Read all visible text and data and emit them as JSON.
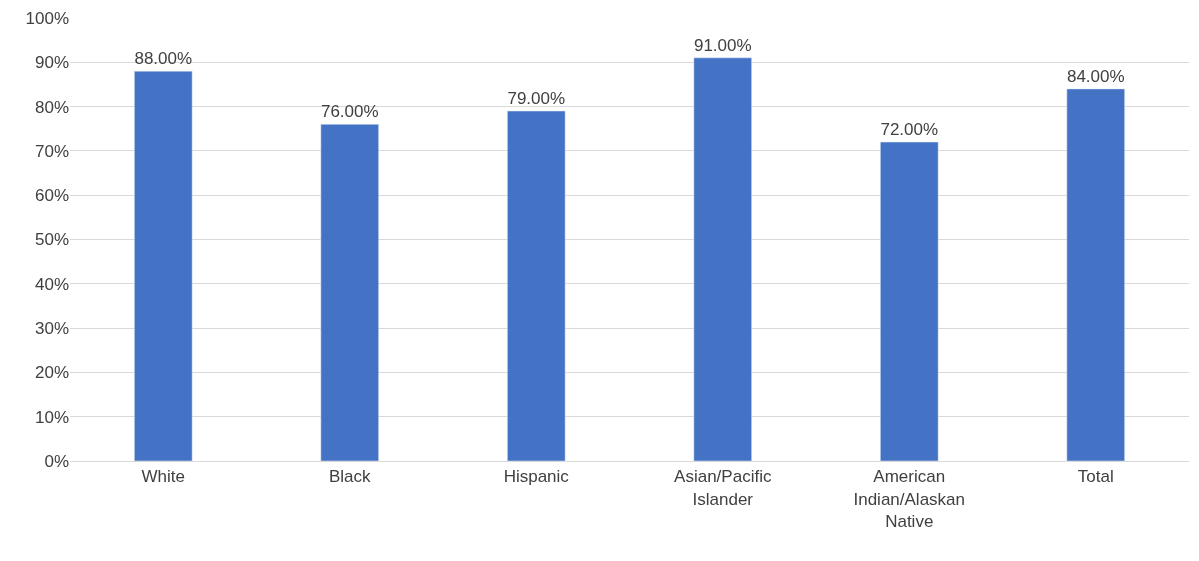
{
  "chart_data": {
    "type": "bar",
    "categories": [
      "White",
      "Black",
      "Hispanic",
      "Asian/Pacific Islander",
      "American Indian/Alaskan Native",
      "Total"
    ],
    "values": [
      88,
      76,
      79,
      91,
      72,
      84
    ],
    "value_labels": [
      "88.00%",
      "76.00%",
      "79.00%",
      "91.00%",
      "72.00%",
      "84.00%"
    ],
    "color": "#4472c4",
    "ylim": [
      0,
      100
    ],
    "yticks": [
      {
        "value": 0,
        "label": "0%"
      },
      {
        "value": 10,
        "label": "10%"
      },
      {
        "value": 20,
        "label": "20%"
      },
      {
        "value": 30,
        "label": "30%"
      },
      {
        "value": 40,
        "label": "40%"
      },
      {
        "value": 50,
        "label": "50%"
      },
      {
        "value": 60,
        "label": "60%"
      },
      {
        "value": 70,
        "label": "70%"
      },
      {
        "value": 80,
        "label": "80%"
      },
      {
        "value": 90,
        "label": "90%"
      },
      {
        "value": 100,
        "label": "100%"
      }
    ],
    "grid": "y",
    "legend": false
  }
}
